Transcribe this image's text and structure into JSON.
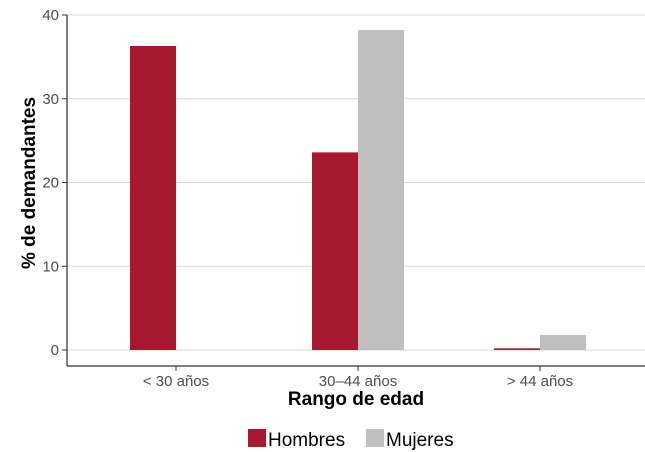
{
  "chart_data": {
    "type": "bar",
    "title": "",
    "xlabel": "Rango de edad",
    "ylabel": "% de demandantes",
    "categories": [
      "< 30 años",
      "30–44 años",
      "> 44 años"
    ],
    "series": [
      {
        "name": "Hombres",
        "values": [
          36.3,
          23.6,
          0.2
        ]
      },
      {
        "name": "Mujeres",
        "values": [
          0.0,
          38.2,
          1.8
        ]
      }
    ],
    "ylim": [
      0,
      40
    ],
    "yticks": [
      0,
      10,
      20,
      30,
      40
    ],
    "grid": "horizontal",
    "legend_position": "bottom"
  },
  "colors": {
    "Hombres": "#a6192e",
    "Mujeres": "#bfbfbf",
    "grid": "#d9d9d9",
    "axis": "#000000"
  }
}
